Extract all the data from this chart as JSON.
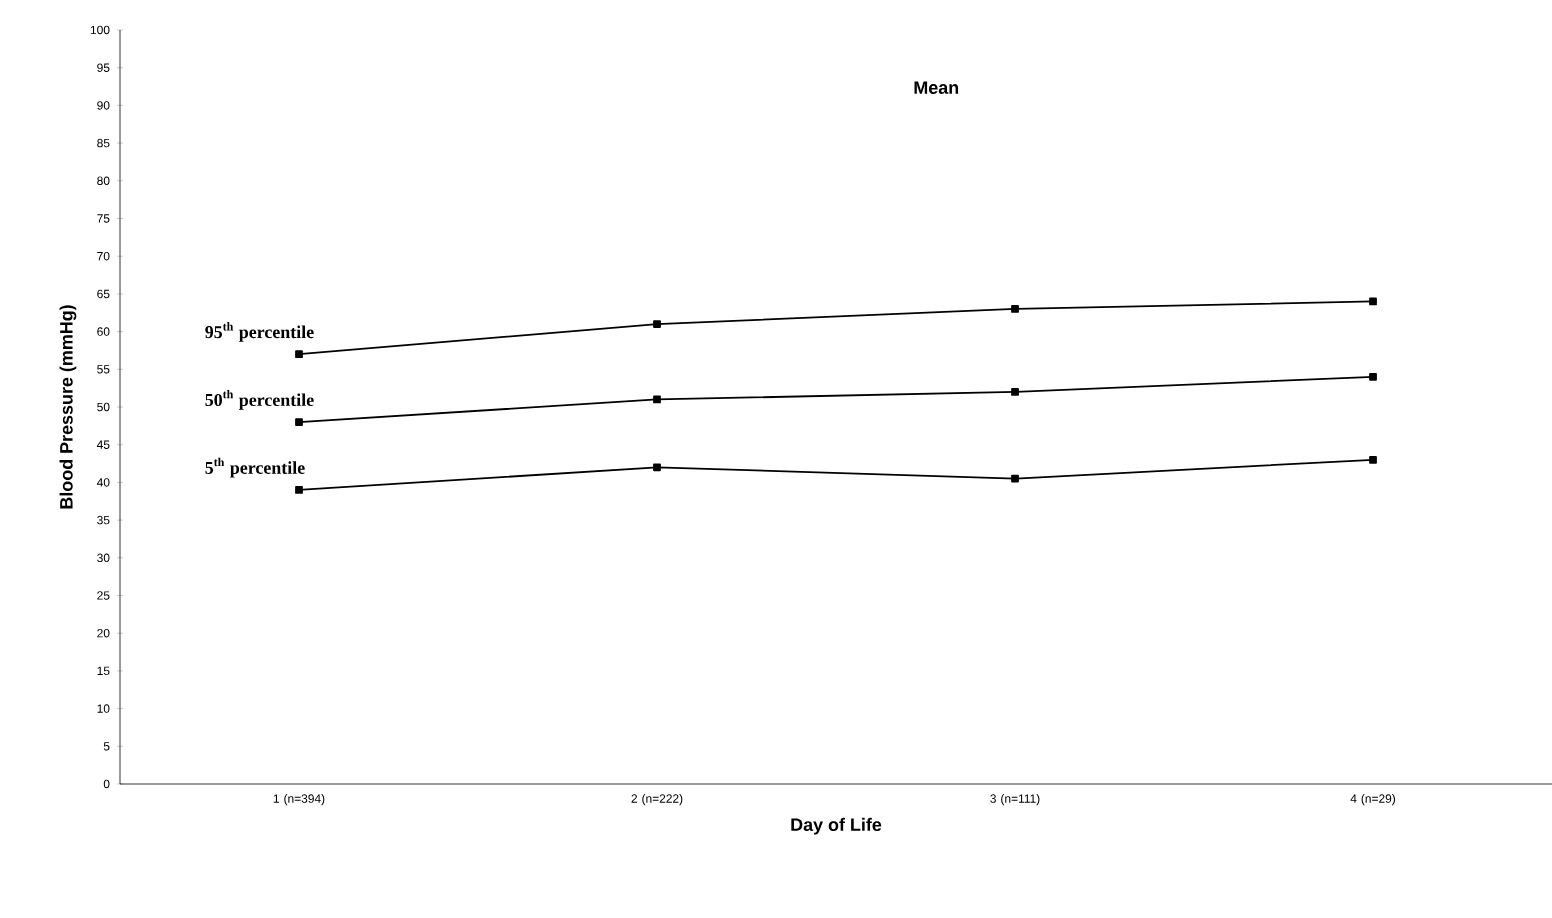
{
  "chart_data": {
    "type": "line",
    "title": "Mean",
    "xlabel": "Day of Life",
    "ylabel": "Blood Pressure (mmHg)",
    "categories": [
      "1 (n=394)",
      "2 (n=222)",
      "3 (n=111)",
      "4 (n=29)"
    ],
    "series": [
      {
        "name": "95$^{th}$ percentile",
        "color": "#000000",
        "values": [
          57,
          61,
          63,
          64
        ]
      },
      {
        "name": "50$^{th}$ percentile",
        "color": "#000000",
        "values": [
          48,
          51,
          52,
          54
        ]
      },
      {
        "name": "5$^{th}$ percentile",
        "color": "#000000",
        "values": [
          39,
          42,
          40.5,
          43
        ]
      }
    ],
    "ylim": [
      0,
      100
    ],
    "yticks": [
      0,
      5,
      10,
      15,
      20,
      25,
      30,
      35,
      40,
      45,
      50,
      55,
      60,
      65,
      70,
      75,
      80,
      85,
      90,
      95,
      100
    ],
    "grid": false,
    "legend": false,
    "marker": "square",
    "line_style": "solid"
  }
}
